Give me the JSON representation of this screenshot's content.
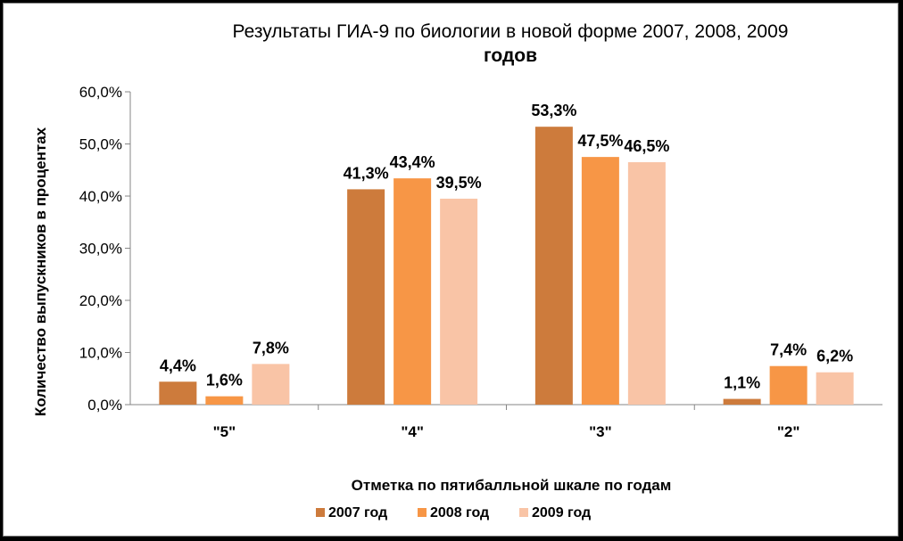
{
  "chart_data": {
    "type": "bar",
    "title_line1": "Результаты ГИА-9 по биологии в новой форме 2007, 2008, 2009",
    "title_line2": "годов",
    "xlabel": "Отметка по пятибалльной шкале по годам",
    "ylabel": "Количество выпускников в процентах",
    "categories": [
      "\"5\"",
      "\"4\"",
      "\"3\"",
      "\"2\""
    ],
    "ylim": [
      0,
      60
    ],
    "yticks": [
      "0,0%",
      "10,0%",
      "20,0%",
      "30,0%",
      "40,0%",
      "50,0%",
      "60,0%"
    ],
    "grid": false,
    "legend_position": "bottom",
    "series": [
      {
        "name": "2007 год",
        "color": "#cd7b3c",
        "values": [
          4.4,
          41.3,
          53.3,
          1.1
        ],
        "labels": [
          "4,4%",
          "41,3%",
          "53,3%",
          "1,1%"
        ]
      },
      {
        "name": "2008 год",
        "color": "#f79646",
        "values": [
          1.6,
          43.4,
          47.5,
          7.4
        ],
        "labels": [
          "1,6%",
          "43,4%",
          "47,5%",
          "7,4%"
        ]
      },
      {
        "name": "2009 год",
        "color": "#f9c4a6",
        "values": [
          7.8,
          39.5,
          46.5,
          6.2
        ],
        "labels": [
          "7,8%",
          "39,5%",
          "46,5%",
          "6,2%"
        ]
      }
    ]
  }
}
